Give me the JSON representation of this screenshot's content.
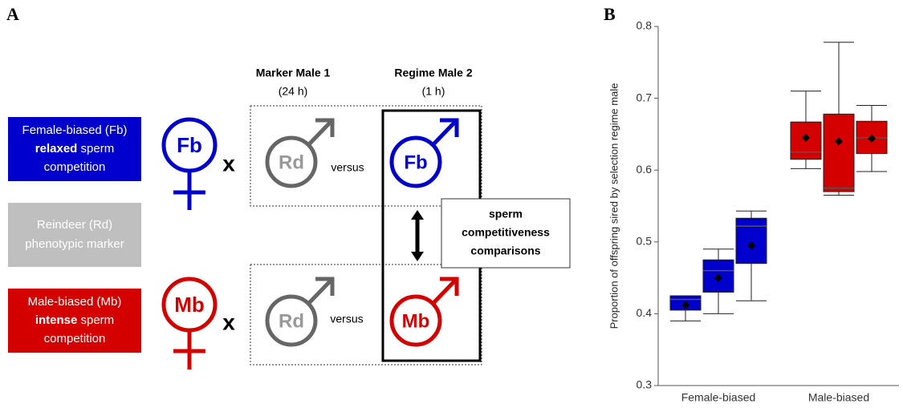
{
  "panel_a": {
    "label": "A",
    "header_marker": "Marker  Male 1",
    "header_marker_time": "(24 h)",
    "header_regime": "Regime Male 2",
    "header_regime_time": "(1 h)",
    "fb_box": {
      "line1": "Female-biased (Fb)",
      "line2_bold": "relaxed",
      "line2_rest": " sperm",
      "line3": "competition"
    },
    "rd_box": {
      "line1": "Reindeer (Rd)",
      "line2": "phenotypic marker"
    },
    "mb_box": {
      "line1": "Male-biased (Mb)",
      "line2_bold": "intense",
      "line2_rest": " sperm",
      "line3": "competition"
    },
    "female_fb": "Fb",
    "female_mb": "Mb",
    "cross_top": "x",
    "cross_bottom": "x",
    "male_rd_top": "Rd",
    "versus_top": "versus",
    "male_fb": "Fb",
    "male_rd_bottom": "Rd",
    "versus_bottom": "versus",
    "male_mb": "Mb",
    "callout": [
      "sperm",
      "competitiveness",
      "comparisons"
    ]
  },
  "chart_data": {
    "type": "box",
    "panel_label": "B",
    "y_label": "Proportion of offspring sired by selection regime male",
    "categories": [
      "Female-biased",
      "Male-biased"
    ],
    "ylim": [
      0.3,
      0.8
    ],
    "yticks": [
      0.3,
      0.4,
      0.5,
      0.6,
      0.7,
      0.8
    ],
    "groups": [
      {
        "color": "#0000cc",
        "boxes": [
          {
            "min": 0.39,
            "q1": 0.405,
            "median": 0.42,
            "q3": 0.425,
            "max": 0.425,
            "mean": 0.412
          },
          {
            "min": 0.4,
            "q1": 0.43,
            "median": 0.46,
            "q3": 0.475,
            "max": 0.49,
            "mean": 0.45
          },
          {
            "min": 0.418,
            "q1": 0.47,
            "median": 0.522,
            "q3": 0.533,
            "max": 0.543,
            "mean": 0.495
          }
        ]
      },
      {
        "color": "#d40000",
        "boxes": [
          {
            "min": 0.602,
            "q1": 0.615,
            "median": 0.625,
            "q3": 0.667,
            "max": 0.71,
            "mean": 0.645
          },
          {
            "min": 0.565,
            "q1": 0.57,
            "median": 0.575,
            "q3": 0.678,
            "max": 0.778,
            "mean": 0.64
          },
          {
            "min": 0.598,
            "q1": 0.623,
            "median": 0.645,
            "q3": 0.668,
            "max": 0.69,
            "mean": 0.644
          }
        ]
      }
    ]
  }
}
